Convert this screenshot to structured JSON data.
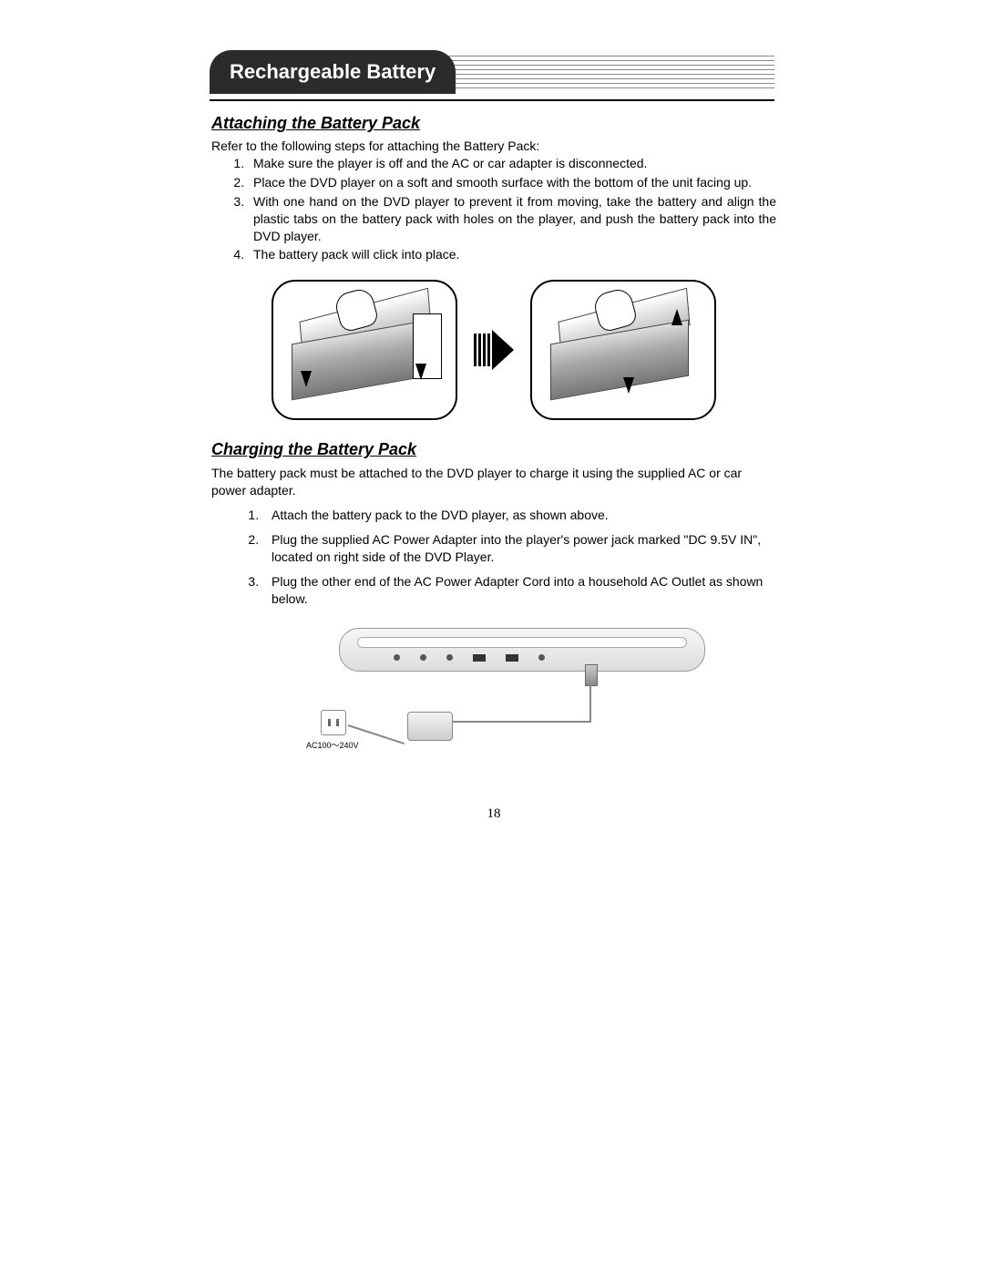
{
  "header": {
    "title": "Rechargeable Battery"
  },
  "section1": {
    "title": "Attaching the Battery Pack",
    "intro": "Refer to the following steps for attaching the Battery Pack:",
    "steps": [
      "Make sure the player is off and the AC or car adapter is disconnected.",
      "Place the DVD player on a soft and smooth surface with the bottom of the unit facing up.",
      "With one hand on the DVD player to prevent it from moving, take the battery and align the plastic tabs on the battery pack with holes on the player, and push the battery pack into the DVD player.",
      "The battery pack will click into place."
    ]
  },
  "section2": {
    "title": "Charging the Battery Pack",
    "intro": "The battery pack must be attached to the DVD player to charge it using the supplied AC or car power adapter.",
    "steps": [
      "Attach the battery pack to the DVD player, as shown above.",
      "Plug the supplied AC Power Adapter into the player's power jack marked \"DC 9.5V IN\", located on right side of the DVD Player.",
      "Plug the other end of the AC Power Adapter Cord into a household AC Outlet as shown below."
    ]
  },
  "figure2": {
    "ac_label": "AC100～240V"
  },
  "page_number": "18"
}
